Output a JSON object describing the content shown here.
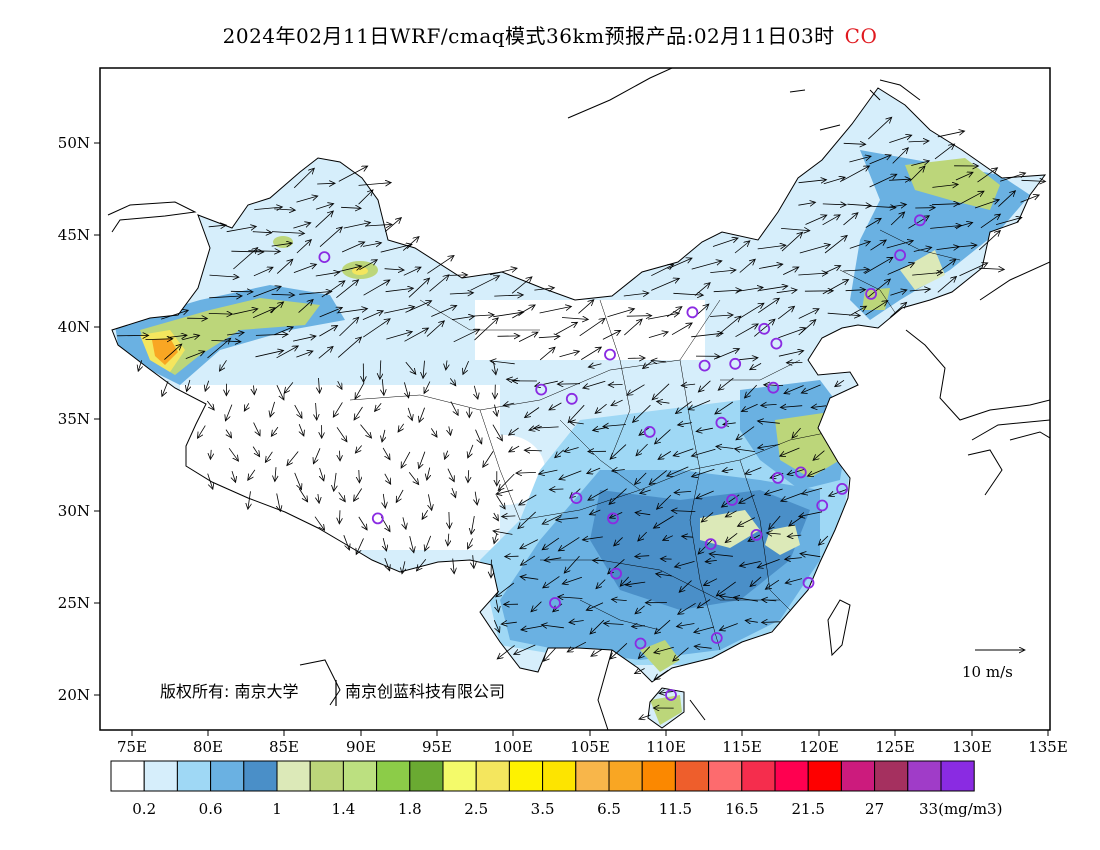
{
  "title": {
    "text": "2024年02月11日WRF/cmaq模式36km预报产品:02月11日03时",
    "species": "CO"
  },
  "axes": {
    "lon_labels": [
      "75E",
      "80E",
      "85E",
      "90E",
      "95E",
      "100E",
      "105E",
      "110E",
      "115E",
      "120E",
      "125E",
      "130E",
      "135E"
    ],
    "lat_labels": [
      "50N",
      "45N",
      "40N",
      "35N",
      "30N",
      "25N",
      "20N"
    ]
  },
  "wind_legend": {
    "label": "10 m/s"
  },
  "copyright": {
    "part1": "版权所有: 南京大学",
    "part2": "南京创蓝科技有限公司"
  },
  "colorbar": {
    "colors": [
      "#ffffff",
      "#d6eefb",
      "#9fd8f5",
      "#6ab1e2",
      "#4a8fc8",
      "#dce9b8",
      "#bcd67a",
      "#bce080",
      "#8ccc48",
      "#6aaa32",
      "#f4fa6a",
      "#f4e65e",
      "#fef200",
      "#fde400",
      "#f8b64a",
      "#f9a623",
      "#fb8800",
      "#ee5e2c",
      "#fd6b6e",
      "#f52d4d",
      "#ff0050",
      "#fe0000",
      "#cc1b7d",
      "#a5305f",
      "#a03cc8",
      "#8a2be2"
    ],
    "labels": [
      "0.2",
      "0.6",
      "1",
      "1.4",
      "1.8",
      "2.5",
      "3.5",
      "6.5",
      "11.5",
      "16.5",
      "21.5",
      "27",
      "33(mg/m3)"
    ],
    "label_positions": [
      1,
      3,
      5,
      7,
      9,
      11,
      13,
      15,
      17,
      19,
      21,
      23,
      25
    ]
  },
  "stations": [
    [
      87.6,
      43.8
    ],
    [
      91.1,
      29.6
    ],
    [
      101.8,
      36.6
    ],
    [
      103.8,
      36.1
    ],
    [
      106.3,
      38.5
    ],
    [
      111.7,
      40.8
    ],
    [
      112.5,
      37.9
    ],
    [
      114.5,
      38.0
    ],
    [
      116.4,
      39.9
    ],
    [
      117.2,
      39.1
    ],
    [
      117.0,
      36.7
    ],
    [
      113.6,
      34.8
    ],
    [
      108.9,
      34.3
    ],
    [
      117.3,
      31.8
    ],
    [
      118.8,
      32.1
    ],
    [
      121.5,
      31.2
    ],
    [
      120.2,
      30.3
    ],
    [
      114.3,
      30.6
    ],
    [
      112.9,
      28.2
    ],
    [
      115.9,
      28.7
    ],
    [
      119.3,
      26.1
    ],
    [
      113.3,
      23.1
    ],
    [
      108.3,
      22.8
    ],
    [
      110.3,
      20.0
    ],
    [
      102.7,
      25.0
    ],
    [
      106.7,
      26.6
    ],
    [
      104.1,
      30.7
    ],
    [
      106.5,
      29.6
    ],
    [
      123.4,
      41.8
    ],
    [
      125.3,
      43.9
    ],
    [
      126.6,
      45.8
    ]
  ]
}
